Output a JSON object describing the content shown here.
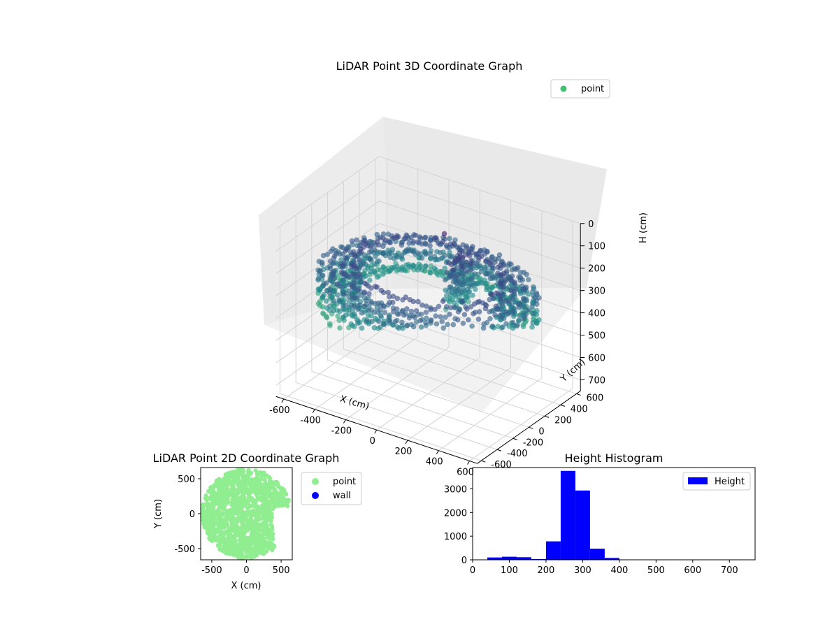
{
  "colors": {
    "point3d_legend": "#44bf70",
    "point2d": "#90ee90",
    "wall": "#0000ff",
    "hist": "#0000ff",
    "pane_left": "#ececec",
    "pane_right": "#e9e9e9",
    "pane_floor": "#f2f2f2",
    "grid": "#d3d3d3"
  },
  "chart_data": [
    {
      "id": "plot3d",
      "type": "scatter",
      "title": "LiDAR Point 3D Coordinate Graph",
      "xlabel": "X (cm)",
      "ylabel": "Y (cm)",
      "zlabel": "H (cm)",
      "xlim": [
        -650,
        650
      ],
      "ylim": [
        -650,
        650
      ],
      "zlim": [
        0,
        750
      ],
      "z_inverted": true,
      "xticks": [
        -600,
        -400,
        -200,
        0,
        200,
        400,
        600
      ],
      "yticks": [
        -600,
        -400,
        -200,
        0,
        200,
        400,
        600
      ],
      "zticks": [
        0,
        100,
        200,
        300,
        400,
        500,
        600,
        700
      ],
      "colormap": "viridis",
      "legend": {
        "label": "point",
        "loc": "upper-right"
      },
      "description_of_points": "ring-shaped wall scan, radius ~300-640 cm, height ~200-450 cm, with an opening toward +X/-Y and a dense cluster near X=0..100"
    },
    {
      "id": "plot2d",
      "type": "scatter",
      "title": "LiDAR Point 2D Coordinate Graph",
      "xlabel": "X (cm)",
      "ylabel": "Y (cm)",
      "xlim": [
        -660,
        660
      ],
      "ylim": [
        -660,
        660
      ],
      "xticks": [
        -500,
        0,
        500
      ],
      "yticks": [
        -500,
        0,
        500
      ],
      "legend": [
        {
          "label": "point",
          "color": "#90ee90"
        },
        {
          "label": "wall",
          "color": "#0000ff"
        }
      ],
      "description_of_points": "filled disc of points, radius ~640 cm, with a notch cut out on the right side between Y=-450 and Y=100"
    },
    {
      "id": "hist",
      "type": "bar",
      "title": "Height Histogram",
      "xlabel": "",
      "ylabel": "",
      "xlim": [
        0,
        770
      ],
      "ylim": [
        0,
        3900
      ],
      "xticks": [
        0,
        100,
        200,
        300,
        400,
        500,
        600,
        700
      ],
      "yticks": [
        0,
        1000,
        2000,
        3000
      ],
      "bin_edges": [
        40,
        80,
        120,
        160,
        200,
        240,
        280,
        320,
        360,
        400,
        440,
        480,
        520,
        560,
        600,
        640,
        680,
        720,
        760
      ],
      "values": [
        100,
        130,
        110,
        30,
        780,
        3760,
        2930,
        470,
        80,
        10,
        5,
        5,
        5,
        5,
        5,
        5,
        5,
        5
      ],
      "legend": {
        "label": "Height",
        "loc": "upper-right"
      }
    }
  ]
}
